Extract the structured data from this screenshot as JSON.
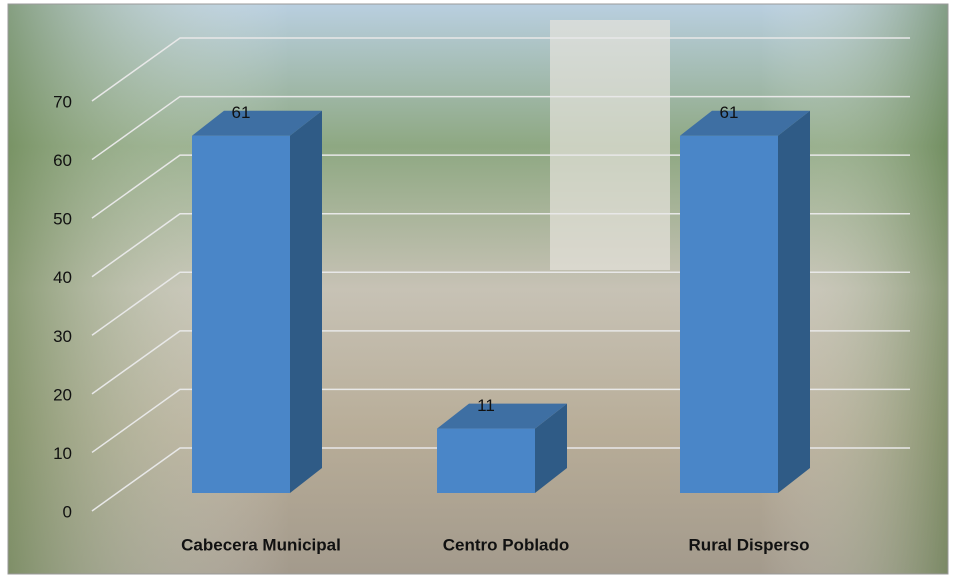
{
  "chart_data": {
    "type": "bar3d",
    "categories": [
      "Cabecera Municipal",
      "Centro Poblado",
      "Rural Disperso"
    ],
    "values": [
      61,
      11,
      61
    ],
    "color": "#4a86c8",
    "ylim": [
      0,
      70
    ],
    "yticks": [
      0,
      10,
      20,
      30,
      40,
      50,
      60,
      70
    ],
    "grid": true
  }
}
